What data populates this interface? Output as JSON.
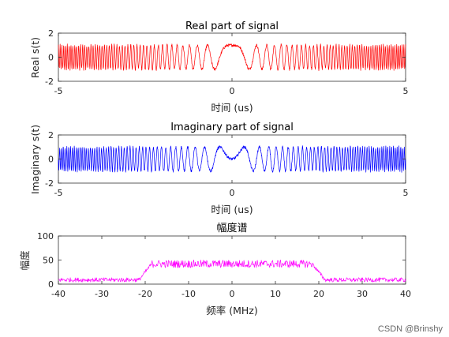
{
  "chart_data": [
    {
      "type": "line",
      "title": "Real part of signal",
      "xlabel": "时间 (us)",
      "ylabel": "Real s(t)",
      "xlim": [
        -5,
        5
      ],
      "ylim": [
        -2,
        2
      ],
      "xticks": [
        -5,
        0,
        5
      ],
      "yticks": [
        -2,
        0,
        2
      ],
      "color": "#ff0000",
      "series": [
        {
          "signal": "chirp-real",
          "bandwidth_mhz": 40,
          "duration_us": 10,
          "amplitude": 1,
          "noise": 0.12
        }
      ]
    },
    {
      "type": "line",
      "title": "Imaginary part of signal",
      "xlabel": "时间 (us)",
      "ylabel": "Imaginary s(t)",
      "xlim": [
        -5,
        5
      ],
      "ylim": [
        -2,
        2
      ],
      "xticks": [
        -5,
        0,
        5
      ],
      "yticks": [
        -2,
        0,
        2
      ],
      "color": "#0000ff",
      "series": [
        {
          "signal": "chirp-imag",
          "bandwidth_mhz": 40,
          "duration_us": 10,
          "amplitude": 1,
          "noise": 0.12
        }
      ]
    },
    {
      "type": "line",
      "title": "幅度谱",
      "xlabel": "频率 (MHz)",
      "ylabel": "幅度",
      "xlim": [
        -40,
        40
      ],
      "ylim": [
        0,
        100
      ],
      "xticks": [
        -40,
        -30,
        -20,
        -10,
        0,
        10,
        20,
        30,
        40
      ],
      "yticks": [
        0,
        50,
        100
      ],
      "color": "#ff00ff",
      "series": [
        {
          "signal": "spectrum",
          "passband_mhz": [
            -20,
            20
          ],
          "passband_level": 42,
          "stopband_level": 8
        }
      ]
    }
  ],
  "watermark": "CSDN @Brinshy"
}
